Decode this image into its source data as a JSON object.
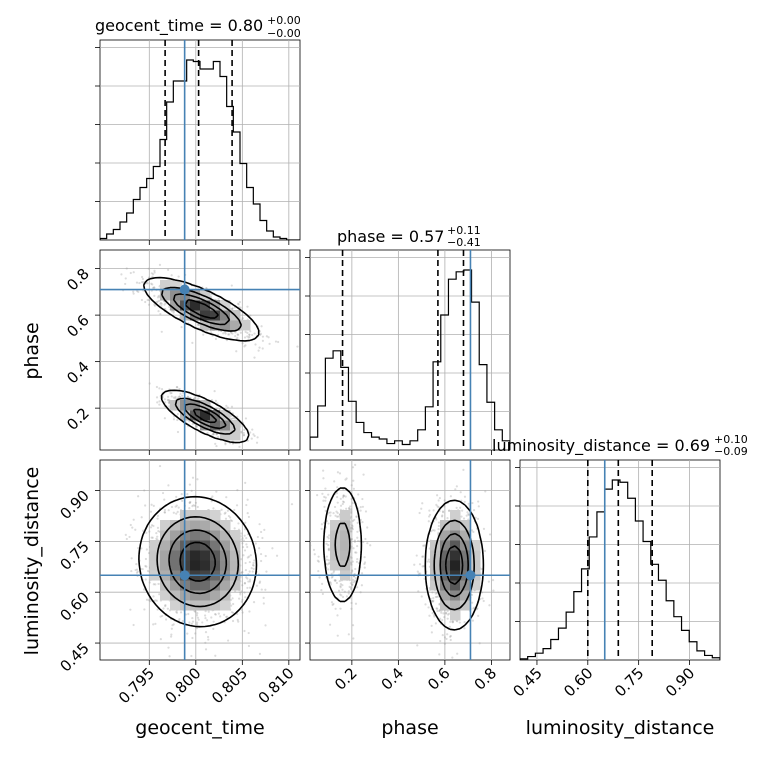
{
  "chart_data": {
    "type": "corner",
    "parameters": [
      "geocent_time",
      "phase",
      "luminosity_distance"
    ],
    "titles": [
      {
        "text": "geocent_time = 0.80",
        "plus": "+0.00",
        "minus": "−0.00"
      },
      {
        "text": "phase = 0.57",
        "plus": "+0.11",
        "minus": "−0.41"
      },
      {
        "text": "luminosity_distance = 0.69",
        "plus": "+0.10",
        "minus": "−0.09"
      }
    ],
    "ranges": {
      "geocent_time": [
        0.7897,
        0.8112
      ],
      "phase": [
        0.02,
        0.88
      ],
      "luminosity_distance": [
        0.4,
        0.99
      ]
    },
    "ticks": {
      "geocent_time": [
        0.795,
        0.8,
        0.805,
        0.81
      ],
      "phase": [
        0.2,
        0.4,
        0.6,
        0.8
      ],
      "luminosity_distance": [
        0.45,
        0.6,
        0.75,
        0.9
      ]
    },
    "tick_labels": {
      "geocent_time": [
        "0.795",
        "0.800",
        "0.805",
        "0.810"
      ],
      "phase": [
        "0.2",
        "0.4",
        "0.6",
        "0.8"
      ],
      "luminosity_distance": [
        "0.45",
        "0.60",
        "0.75",
        "0.90"
      ]
    },
    "truths": {
      "geocent_time": 0.7988,
      "phase": 0.71,
      "luminosity_distance": 0.65
    },
    "quantiles": {
      "geocent_time": [
        0.7967,
        0.8003,
        0.8039
      ],
      "phase": [
        0.16,
        0.57,
        0.68
      ],
      "luminosity_distance": [
        0.6,
        0.69,
        0.79
      ]
    },
    "histograms": {
      "geocent_time": {
        "edges_range": [
          0.7897,
          0.8112
        ],
        "counts": [
          1,
          4,
          7,
          12,
          18,
          27,
          35,
          41,
          49,
          67,
          92,
          106,
          106,
          120,
          119,
          114,
          114,
          119,
          109,
          89,
          72,
          51,
          35,
          24,
          13,
          6,
          2,
          1,
          0,
          0
        ]
      },
      "phase": {
        "edges_range": [
          0.02,
          0.88
        ],
        "counts": [
          14,
          48,
          100,
          108,
          90,
          53,
          30,
          19,
          14,
          12,
          7,
          10,
          6,
          10,
          22,
          47,
          96,
          147,
          186,
          194,
          196,
          161,
          93,
          52,
          22,
          10
        ]
      },
      "luminosity_distance": {
        "edges_range": [
          0.4,
          0.99
        ],
        "counts": [
          1,
          3,
          6,
          10,
          18,
          28,
          42,
          60,
          80,
          108,
          130,
          150,
          158,
          156,
          142,
          122,
          104,
          84,
          70,
          52,
          38,
          26,
          16,
          8,
          4,
          2
        ]
      }
    },
    "panels_2d": [
      {
        "x": "geocent_time",
        "y": "phase",
        "clusters": [
          {
            "x": 0.8006,
            "y": 0.625,
            "sx": 0.00275,
            "sy": 0.06,
            "rho": -0.75,
            "weight": 0.62
          },
          {
            "x": 0.801,
            "y": 0.165,
            "sx": 0.0021,
            "sy": 0.05,
            "rho": -0.75,
            "weight": 0.38
          }
        ]
      },
      {
        "x": "geocent_time",
        "y": "luminosity_distance",
        "clusters": [
          {
            "x": 0.8002,
            "y": 0.69,
            "sx": 0.0028,
            "sy": 0.085,
            "rho": -0.05,
            "weight": 1.0
          }
        ]
      },
      {
        "x": "phase",
        "y": "luminosity_distance",
        "clusters": [
          {
            "x": 0.64,
            "y": 0.68,
            "sx": 0.055,
            "sy": 0.085,
            "rho": 0.0,
            "weight": 0.74
          },
          {
            "x": 0.16,
            "y": 0.74,
            "sx": 0.045,
            "sy": 0.095,
            "rho": 0.0,
            "weight": 0.26
          }
        ]
      }
    ],
    "xlabels": [
      "geocent_time",
      "phase",
      "luminosity_distance"
    ],
    "ylabels": [
      "",
      "phase",
      "luminosity_distance"
    ],
    "grid": true,
    "colors": {
      "truth": "#4682b4",
      "contour": "#000000",
      "points": "#9a9a9a",
      "grid": "#b0b0b0"
    }
  }
}
